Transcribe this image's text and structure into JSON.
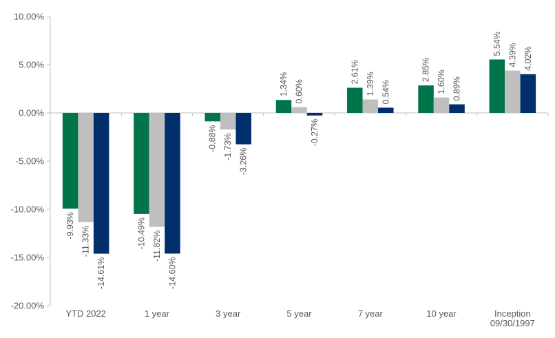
{
  "chart_data": {
    "type": "bar",
    "title": "",
    "xlabel": "",
    "ylabel": "",
    "ylim": [
      -20,
      10
    ],
    "y_ticks": [
      "10.00%",
      "5.00%",
      "0.00%",
      "-5.00%",
      "-10.00%",
      "-15.00%",
      "-20.00%"
    ],
    "y_tick_values": [
      10,
      5,
      0,
      -5,
      -10,
      -15,
      -20
    ],
    "categories": [
      "YTD 2022",
      "1 year",
      "3 year",
      "5 year",
      "7 year",
      "10 year",
      "Inception\n09/30/1997"
    ],
    "series": [
      {
        "color": "#007549",
        "values": [
          -9.93,
          -10.49,
          -0.88,
          1.34,
          2.61,
          2.85,
          5.54
        ],
        "labels": [
          "-9.93%",
          "-10.49%",
          "-0.88%",
          "1.34%",
          "2.61%",
          "2.85%",
          "5.54%"
        ]
      },
      {
        "color": "#bfbfbf",
        "values": [
          -11.33,
          -11.82,
          -1.73,
          0.6,
          1.39,
          1.6,
          4.39
        ],
        "labels": [
          "-11.33%",
          "-11.82%",
          "-1.73%",
          "0.60%",
          "1.39%",
          "1.60%",
          "4.39%"
        ]
      },
      {
        "color": "#002f6c",
        "values": [
          -14.61,
          -14.6,
          -3.26,
          -0.27,
          0.54,
          0.89,
          4.02
        ],
        "labels": [
          "-14.61%",
          "-14.60%",
          "-3.26%",
          "-0.27%",
          "0.54%",
          "0.89%",
          "4.02%"
        ]
      }
    ],
    "grid": false,
    "legend": "none"
  }
}
